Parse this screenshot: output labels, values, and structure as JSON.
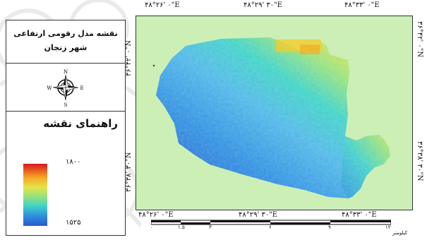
{
  "map_title": {
    "line1": "نقشه مدل رقومی ارتفاعی",
    "line2": "شهر زنجان"
  },
  "north_arrow": {
    "n": "N",
    "s": "S",
    "e": "E",
    "w": "W"
  },
  "legend": {
    "heading": "راهنمای نقشه",
    "max_value": "۱۸۰۰",
    "min_value": "۱۵۲۵",
    "colors": [
      "#d7191c",
      "#f5a623",
      "#e6e34a",
      "#9be27a",
      "#3fd3c6",
      "#2e8fe0",
      "#2b57c9"
    ]
  },
  "coordinates": {
    "top": [
      "۴۸°۲۶' ۰\"E",
      "۴۸°۲۹' ۳۰\"E",
      "۴۸°۳۳' ۰\"E"
    ],
    "bottom": [
      "۴۸°۲۶' ۰\"E",
      "۴۸°۲۹' ۳۰\"E",
      "۴۸°۳۳' ۰\"E"
    ],
    "left": [
      "۳۶°۴۲' ۰\"N",
      "۳۶°۳۸' ۳۰\"N"
    ],
    "right": [
      "۳۶°۴۲' ۰\"N",
      "۳۶°۳۸' ۳۰\"N"
    ]
  },
  "scale_bar": {
    "labels": [
      "۰",
      "۱.۵",
      "۳",
      "۶",
      "۹",
      "۱۲"
    ],
    "unit": "کیلومتر"
  },
  "colors": {
    "background": "#ccefb6",
    "border": "#333333"
  }
}
